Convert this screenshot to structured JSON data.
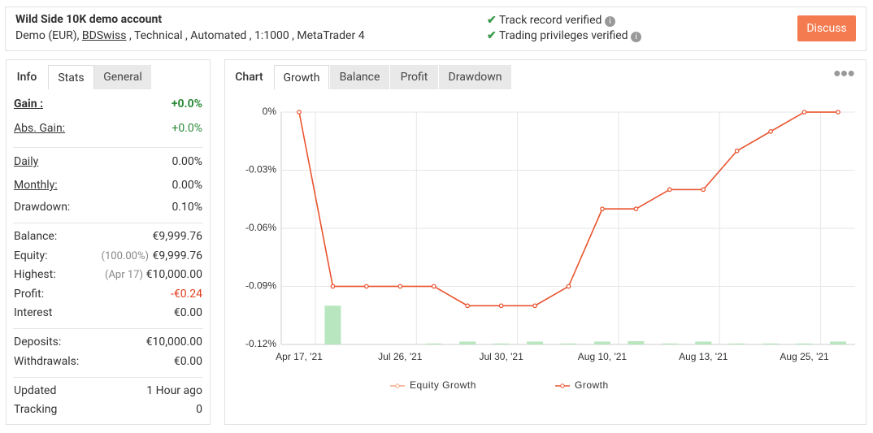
{
  "header": {
    "title": "Wild Side 10K demo account",
    "subtitle_prefix": "Demo (EUR), ",
    "broker": "BDSwiss",
    "subtitle_suffix": " , Technical , Automated , 1:1000 , MetaTrader 4",
    "verifications": [
      "Track record verified",
      "Trading privileges verified"
    ],
    "button": "Discuss"
  },
  "left_tabs": [
    "Info",
    "Stats",
    "General"
  ],
  "stats": [
    [
      {
        "label": "Gain :",
        "value": "+0.0%"
      },
      {
        "label": "Abs. Gain:",
        "value": "+0.0%"
      }
    ],
    [
      {
        "label": "Daily",
        "value": "0.00%"
      },
      {
        "label": "Monthly:",
        "value": "0.00%"
      },
      {
        "label": "Drawdown:",
        "value": "0.10%"
      }
    ],
    [
      {
        "label": "Balance:",
        "value": "€9,999.76"
      },
      {
        "label": "Equity:",
        "note": "(100.00%)",
        "value": "€9,999.76"
      },
      {
        "label": "Highest:",
        "note": "(Apr 17)",
        "value": "€10,000.00"
      },
      {
        "label": "Profit:",
        "value": "-€0.24"
      },
      {
        "label": "Interest",
        "value": "€0.00"
      }
    ],
    [
      {
        "label": "Deposits:",
        "value": "€10,000.00"
      },
      {
        "label": "Withdrawals:",
        "value": "€0.00"
      }
    ],
    [
      {
        "label": "Updated",
        "value": "1 Hour ago"
      },
      {
        "label": "Tracking",
        "value": "0"
      }
    ]
  ],
  "chart_tabs": [
    "Chart",
    "Growth",
    "Balance",
    "Profit",
    "Drawdown"
  ],
  "chart_data": {
    "type": "line",
    "categories": [
      "Apr 17, '21",
      null,
      null,
      "Jul 26, '21",
      null,
      null,
      "Jul 30, '21",
      null,
      null,
      "Aug 10, '21",
      null,
      null,
      "Aug 13, '21",
      null,
      null,
      "Aug 25, '21",
      null
    ],
    "series": [
      {
        "name": "Equity Growth",
        "color": "#f4a582",
        "values": [
          0,
          -0.09,
          -0.09,
          -0.09,
          -0.09,
          -0.1,
          -0.1,
          -0.1,
          -0.09,
          -0.05,
          -0.05,
          -0.04,
          -0.04,
          -0.02,
          -0.01,
          0,
          0
        ]
      },
      {
        "name": "Growth",
        "color": "#e8532f",
        "values": [
          0,
          -0.09,
          -0.09,
          -0.09,
          -0.09,
          -0.1,
          -0.1,
          -0.1,
          -0.09,
          -0.05,
          -0.05,
          -0.04,
          -0.04,
          -0.02,
          -0.01,
          0,
          0
        ]
      }
    ],
    "bars": {
      "color": "#b8e6bf",
      "values": [
        null,
        -0.1,
        null,
        null,
        -0.1195,
        -0.1185,
        -0.1195,
        -0.1185,
        -0.1195,
        -0.1185,
        -0.1183,
        -0.1195,
        -0.1185,
        -0.1195,
        -0.1195,
        -0.1195,
        -0.1185
      ]
    },
    "ylim": [
      -0.12,
      0
    ],
    "yticks": [
      {
        "value": 0,
        "label": "0%"
      },
      {
        "value": -0.03,
        "label": "-0.03%"
      },
      {
        "value": -0.06,
        "label": "-0.06%"
      },
      {
        "value": -0.09,
        "label": "-0.09%"
      },
      {
        "value": -0.12,
        "label": "-0.12%"
      }
    ],
    "grid": true
  }
}
